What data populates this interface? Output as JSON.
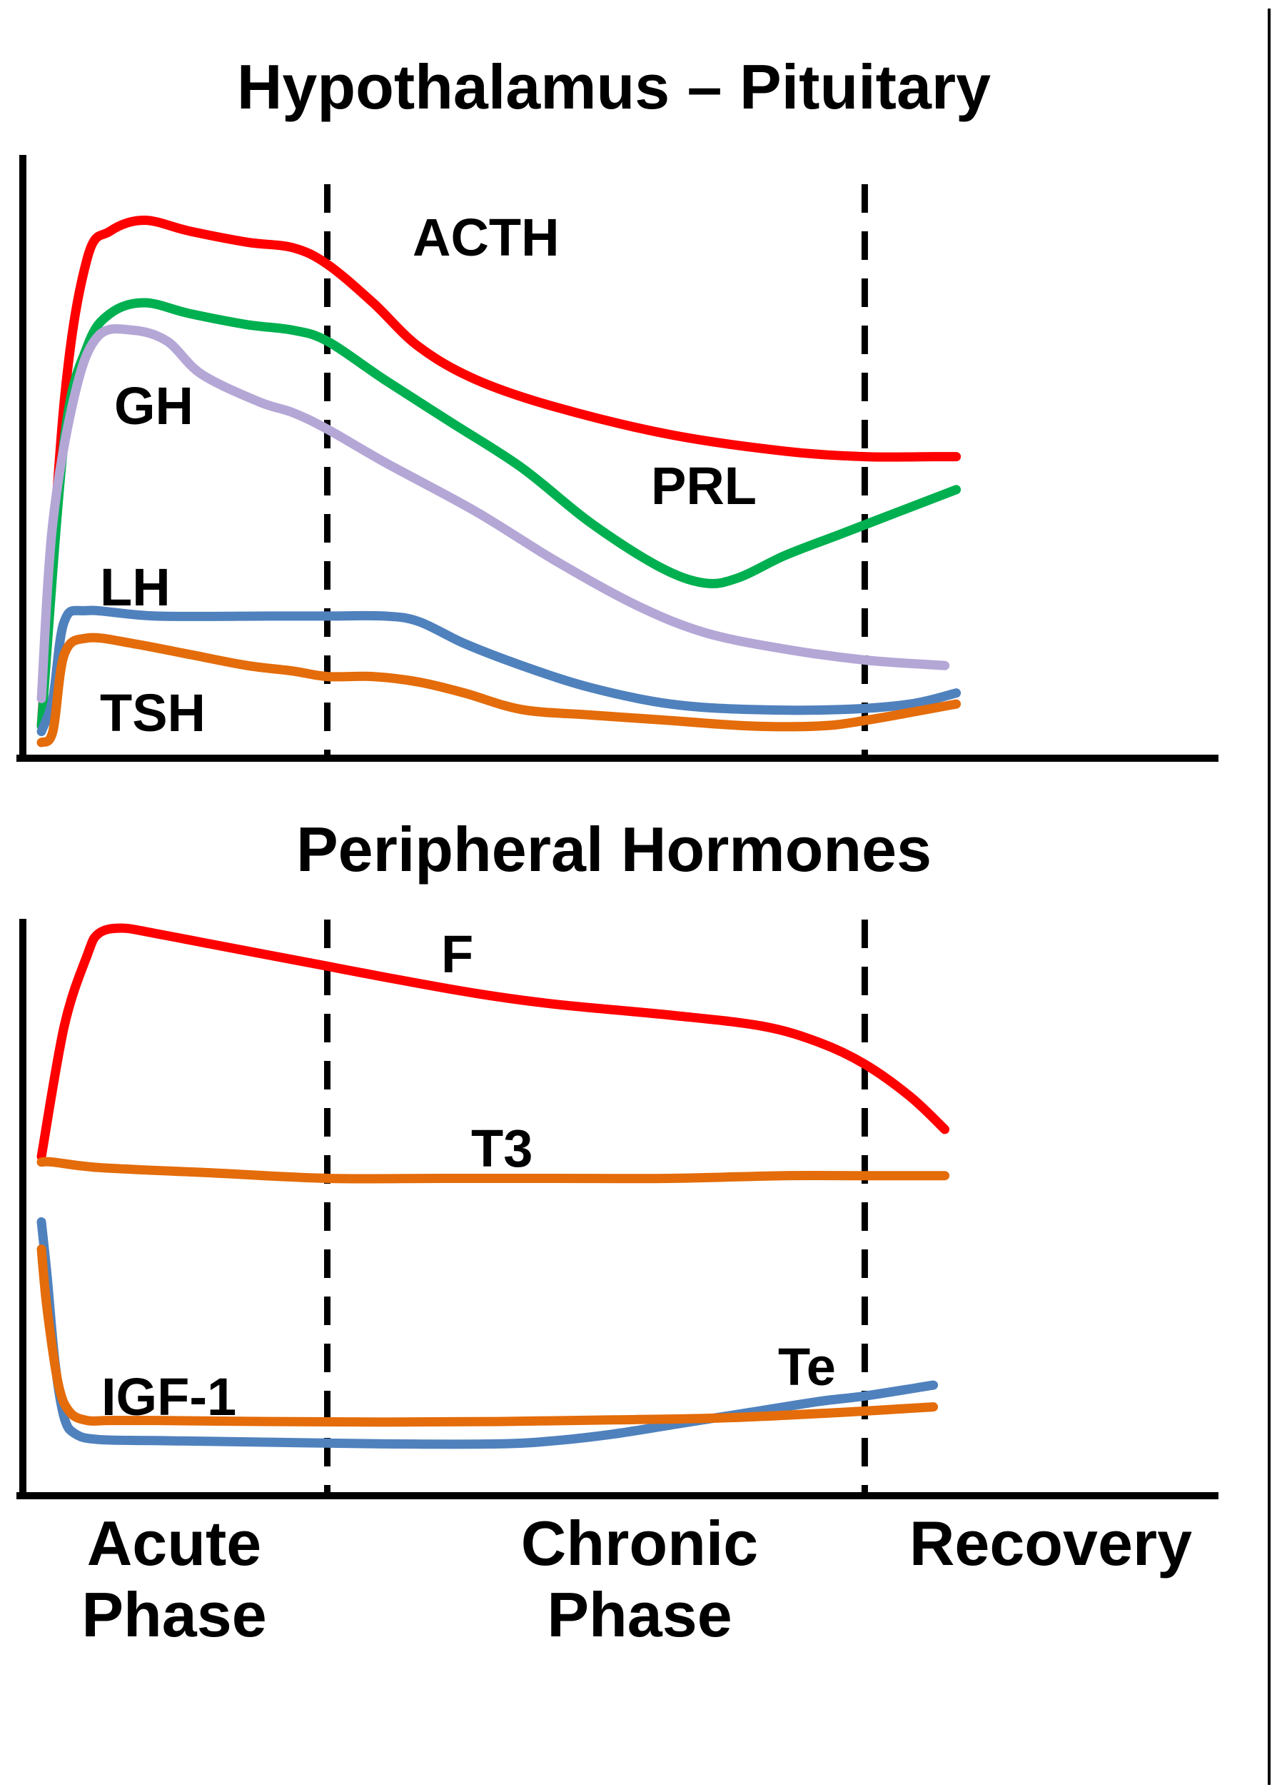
{
  "chart_data": [
    {
      "type": "line",
      "title": "Hypothalamus – Pituitary",
      "x_unit": "fraction of illness time course",
      "y_unit": "relative level",
      "xlim": [
        0,
        1
      ],
      "ylim": [
        0,
        1
      ],
      "phases": [
        {
          "label": "Acute Phase",
          "start": 0.0,
          "end": 0.25
        },
        {
          "label": "Chronic Phase",
          "start": 0.25,
          "end": 0.72
        },
        {
          "label": "Recovery",
          "start": 0.72,
          "end": 1.0
        }
      ],
      "dividers": [
        0.25,
        0.72
      ],
      "series": [
        {
          "name": "ACTH",
          "color": "#ff0000",
          "x": [
            0.0,
            0.02,
            0.04,
            0.06,
            0.09,
            0.13,
            0.18,
            0.22,
            0.25,
            0.29,
            0.33,
            0.38,
            0.45,
            0.55,
            0.65,
            0.72,
            0.78,
            0.8
          ],
          "y": [
            0.03,
            0.62,
            0.88,
            0.93,
            0.95,
            0.93,
            0.91,
            0.9,
            0.87,
            0.8,
            0.72,
            0.66,
            0.61,
            0.56,
            0.53,
            0.52,
            0.52,
            0.52
          ]
        },
        {
          "name": "PRL",
          "color": "#00b050",
          "x": [
            0.0,
            0.02,
            0.04,
            0.06,
            0.09,
            0.13,
            0.18,
            0.22,
            0.25,
            0.3,
            0.36,
            0.42,
            0.48,
            0.54,
            0.58,
            0.61,
            0.65,
            0.7,
            0.75,
            0.8
          ],
          "y": [
            0.03,
            0.55,
            0.72,
            0.78,
            0.8,
            0.78,
            0.76,
            0.75,
            0.73,
            0.66,
            0.58,
            0.5,
            0.4,
            0.32,
            0.29,
            0.3,
            0.34,
            0.38,
            0.42,
            0.46
          ]
        },
        {
          "name": "GH",
          "color": "#b4a7d6",
          "x": [
            0.0,
            0.01,
            0.03,
            0.05,
            0.08,
            0.11,
            0.14,
            0.19,
            0.22,
            0.25,
            0.3,
            0.38,
            0.45,
            0.52,
            0.58,
            0.65,
            0.72,
            0.79
          ],
          "y": [
            0.08,
            0.4,
            0.64,
            0.74,
            0.75,
            0.73,
            0.67,
            0.62,
            0.6,
            0.57,
            0.51,
            0.42,
            0.33,
            0.25,
            0.2,
            0.17,
            0.15,
            0.14
          ]
        },
        {
          "name": "LH",
          "color": "#4f81bd",
          "x": [
            0.0,
            0.01,
            0.02,
            0.04,
            0.1,
            0.2,
            0.25,
            0.3,
            0.33,
            0.37,
            0.42,
            0.48,
            0.55,
            0.62,
            0.7,
            0.76,
            0.8
          ],
          "y": [
            0.02,
            0.08,
            0.22,
            0.24,
            0.23,
            0.23,
            0.23,
            0.23,
            0.22,
            0.18,
            0.14,
            0.1,
            0.07,
            0.06,
            0.06,
            0.07,
            0.09
          ]
        },
        {
          "name": "TSH",
          "color": "#e46c0a",
          "x": [
            0.0,
            0.01,
            0.02,
            0.04,
            0.08,
            0.13,
            0.18,
            0.22,
            0.25,
            0.29,
            0.33,
            0.37,
            0.42,
            0.48,
            0.55,
            0.62,
            0.68,
            0.72,
            0.8
          ],
          "y": [
            0.0,
            0.02,
            0.16,
            0.19,
            0.18,
            0.16,
            0.14,
            0.13,
            0.12,
            0.12,
            0.11,
            0.09,
            0.06,
            0.05,
            0.04,
            0.03,
            0.03,
            0.04,
            0.07
          ]
        }
      ],
      "labels": [
        {
          "text": "ACTH",
          "series": "ACTH"
        },
        {
          "text": "GH",
          "series": "GH"
        },
        {
          "text": "PRL",
          "series": "PRL"
        },
        {
          "text": "LH",
          "series": "LH"
        },
        {
          "text": "TSH",
          "series": "TSH"
        }
      ]
    },
    {
      "type": "line",
      "title": "Peripheral Hormones",
      "x_unit": "fraction of illness time course",
      "y_unit": "relative level",
      "xlim": [
        0,
        1
      ],
      "ylim": [
        0,
        1
      ],
      "phases": [
        {
          "label": "Acute Phase",
          "start": 0.0,
          "end": 0.25
        },
        {
          "label": "Chronic Phase",
          "start": 0.25,
          "end": 0.72
        },
        {
          "label": "Recovery",
          "start": 0.72,
          "end": 1.0
        }
      ],
      "dividers": [
        0.25,
        0.72
      ],
      "series": [
        {
          "name": "F",
          "color": "#ff0000",
          "x": [
            0.0,
            0.02,
            0.04,
            0.05,
            0.07,
            0.1,
            0.15,
            0.2,
            0.25,
            0.3,
            0.38,
            0.45,
            0.55,
            0.63,
            0.68,
            0.72,
            0.76,
            0.79
          ],
          "y": [
            0.58,
            0.82,
            0.95,
            0.99,
            1.0,
            0.99,
            0.97,
            0.95,
            0.93,
            0.91,
            0.88,
            0.86,
            0.84,
            0.82,
            0.79,
            0.75,
            0.69,
            0.63
          ]
        },
        {
          "name": "T3",
          "color": "#e46c0a",
          "x": [
            0.0,
            0.01,
            0.05,
            0.15,
            0.25,
            0.35,
            0.45,
            0.55,
            0.65,
            0.72,
            0.79
          ],
          "y": [
            0.57,
            0.57,
            0.56,
            0.55,
            0.54,
            0.54,
            0.54,
            0.54,
            0.545,
            0.545,
            0.545
          ]
        },
        {
          "name": "Te",
          "color": "#4f81bd",
          "x": [
            0.0,
            0.005,
            0.012,
            0.02,
            0.03,
            0.05,
            0.1,
            0.2,
            0.3,
            0.4,
            0.45,
            0.5,
            0.56,
            0.62,
            0.68,
            0.72,
            0.78
          ],
          "y": [
            0.46,
            0.36,
            0.2,
            0.1,
            0.07,
            0.06,
            0.058,
            0.055,
            0.052,
            0.052,
            0.058,
            0.07,
            0.09,
            0.11,
            0.13,
            0.14,
            0.16
          ]
        },
        {
          "name": "IGF-1",
          "color": "#e46c0a",
          "x": [
            0.0,
            0.005,
            0.015,
            0.025,
            0.04,
            0.06,
            0.1,
            0.2,
            0.3,
            0.4,
            0.5,
            0.6,
            0.7,
            0.78
          ],
          "y": [
            0.41,
            0.3,
            0.16,
            0.11,
            0.095,
            0.095,
            0.095,
            0.093,
            0.092,
            0.093,
            0.096,
            0.1,
            0.11,
            0.12
          ]
        }
      ],
      "labels": [
        {
          "text": "F",
          "series": "F"
        },
        {
          "text": "T3",
          "series": "T3"
        },
        {
          "text": "IGF-1",
          "series": "IGF-1"
        },
        {
          "text": "Te",
          "series": "Te"
        }
      ]
    }
  ],
  "x_axis_labels": [
    {
      "lines": [
        "Acute",
        "Phase"
      ]
    },
    {
      "lines": [
        "Chronic",
        "Phase"
      ]
    },
    {
      "lines": [
        "Recovery"
      ]
    }
  ]
}
